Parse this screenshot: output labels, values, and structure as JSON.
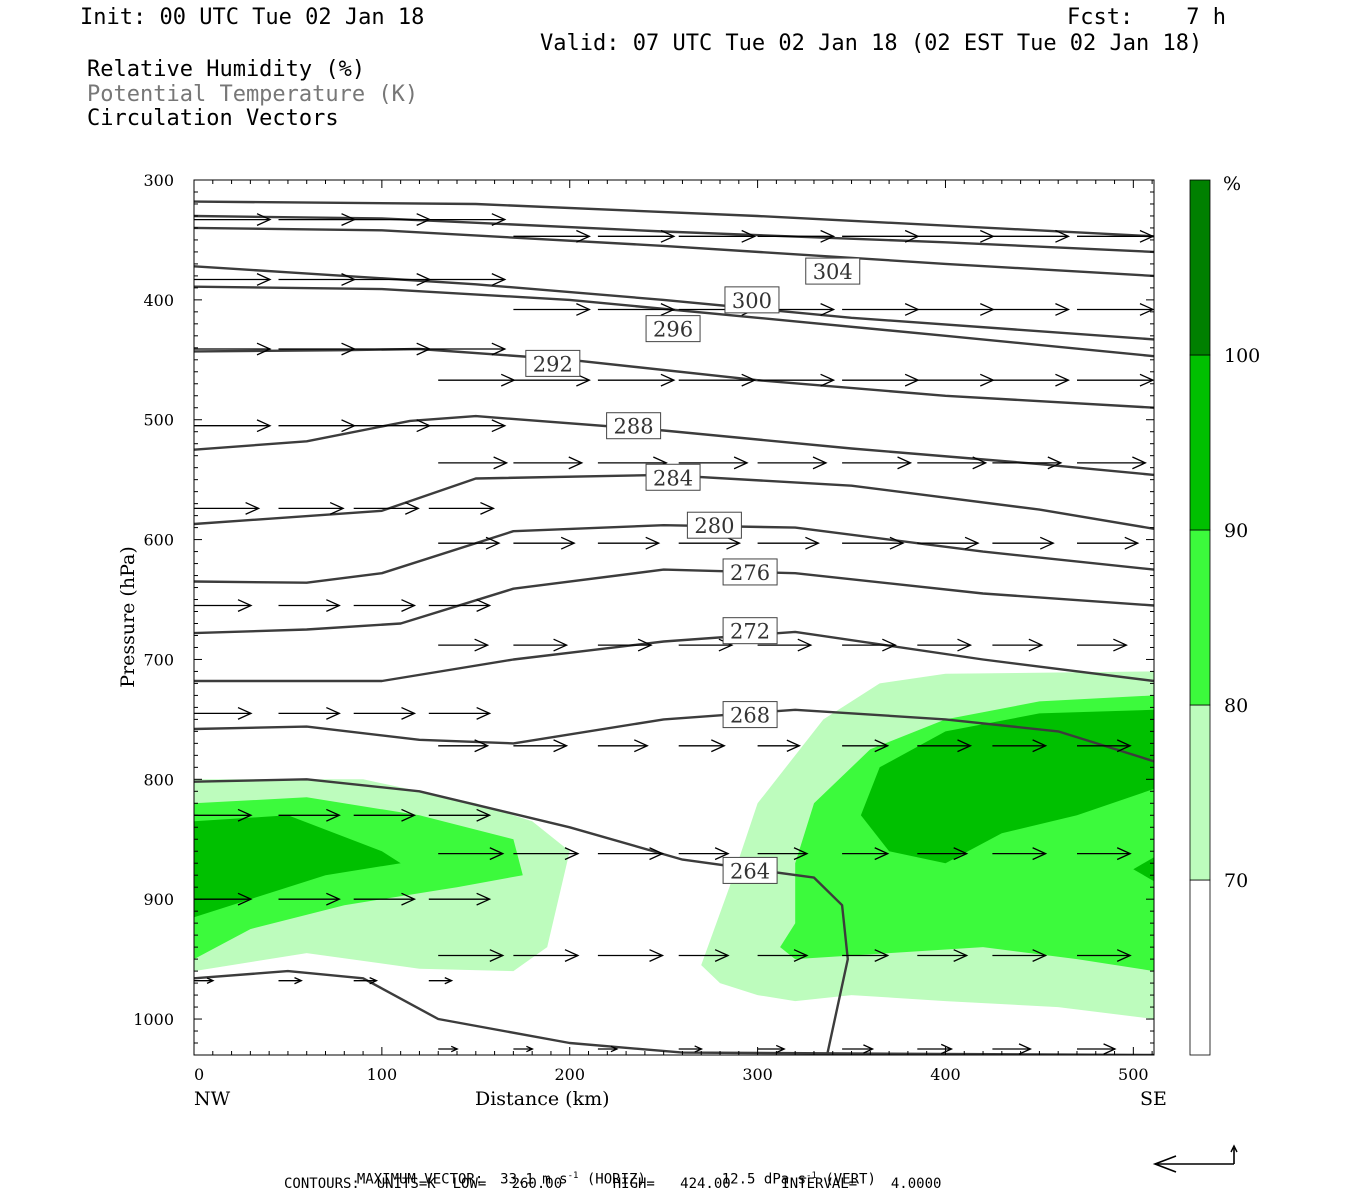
{
  "header": {
    "init": "Init: 00 UTC Tue 02 Jan 18",
    "fcst": "Fcst:    7 h",
    "valid": "Valid: 07 UTC Tue 02 Jan 18 (02 EST Tue 02 Jan 18)",
    "fields": [
      "Relative Humidity (%)",
      "Potential Temperature (K)",
      "Circulation Vectors"
    ]
  },
  "footer": {
    "max_vector_label": "MAXIMUM VECTOR:",
    "max_vector_horiz": "33.1 m s",
    "horiz_tag": "(HORIZ)",
    "max_vector_vert": "12.5 dPa s",
    "vert_tag": "(VERT)",
    "contours": "CONTOURS:  UNITS=K  LOW=   260.00      HIGH=   424.00      INTERVAL=    4.0000"
  },
  "chart_data": {
    "type": "cross-section",
    "xlabel": "Distance (km)",
    "ylabel": "Pressure (hPa)",
    "x_ticks": [
      0,
      100,
      200,
      300,
      400,
      500
    ],
    "x_end_labels": [
      "NW",
      "SE"
    ],
    "xlim": [
      0,
      511
    ],
    "ylim": [
      300,
      1030
    ],
    "y_ticks": [
      300,
      400,
      500,
      600,
      700,
      800,
      900,
      1000
    ],
    "colorbar": {
      "unit": "%",
      "levels": [
        70,
        80,
        90,
        100
      ],
      "colors": [
        "#ffffff",
        "#bdfcbd",
        "#3cfa3c",
        "#00c000",
        "#008000"
      ]
    },
    "theta_contour_labels": [
      {
        "value": "264",
        "x": 296,
        "p": 876
      },
      {
        "value": "268",
        "x": 296,
        "p": 746
      },
      {
        "value": "272",
        "x": 296,
        "p": 676
      },
      {
        "value": "276",
        "x": 296,
        "p": 627
      },
      {
        "value": "280",
        "x": 277,
        "p": 588
      },
      {
        "value": "284",
        "x": 255,
        "p": 548
      },
      {
        "value": "288",
        "x": 234,
        "p": 505
      },
      {
        "value": "292",
        "x": 191,
        "p": 453
      },
      {
        "value": "296",
        "x": 255,
        "p": 424
      },
      {
        "value": "300",
        "x": 297,
        "p": 400
      },
      {
        "value": "304",
        "x": 340,
        "p": 376
      }
    ],
    "theta_contours": [
      [
        [
          0,
          318
        ],
        [
          150,
          320
        ],
        [
          300,
          330
        ],
        [
          511,
          347
        ]
      ],
      [
        [
          0,
          330
        ],
        [
          100,
          332
        ],
        [
          250,
          343
        ],
        [
          400,
          352
        ],
        [
          511,
          360
        ]
      ],
      [
        [
          0,
          340
        ],
        [
          100,
          342
        ],
        [
          250,
          355
        ],
        [
          400,
          370
        ],
        [
          511,
          380
        ]
      ],
      [
        [
          0,
          372
        ],
        [
          50,
          377
        ],
        [
          150,
          387
        ],
        [
          250,
          400
        ],
        [
          350,
          415
        ],
        [
          511,
          433
        ]
      ],
      [
        [
          0,
          389
        ],
        [
          100,
          391
        ],
        [
          200,
          400
        ],
        [
          300,
          415
        ],
        [
          400,
          430
        ],
        [
          511,
          447
        ]
      ],
      [
        [
          0,
          443
        ],
        [
          80,
          442
        ],
        [
          120,
          441
        ],
        [
          200,
          450
        ],
        [
          300,
          467
        ],
        [
          400,
          480
        ],
        [
          511,
          490
        ]
      ],
      [
        [
          0,
          525
        ],
        [
          60,
          518
        ],
        [
          115,
          501
        ],
        [
          150,
          497
        ],
        [
          250,
          509
        ],
        [
          350,
          524
        ],
        [
          450,
          537
        ],
        [
          511,
          546
        ]
      ],
      [
        [
          0,
          587
        ],
        [
          100,
          576
        ],
        [
          150,
          549
        ],
        [
          250,
          546
        ],
        [
          350,
          555
        ],
        [
          450,
          575
        ],
        [
          511,
          591
        ]
      ],
      [
        [
          0,
          635
        ],
        [
          60,
          636
        ],
        [
          100,
          628
        ],
        [
          170,
          593
        ],
        [
          250,
          588
        ],
        [
          320,
          590
        ],
        [
          420,
          610
        ],
        [
          511,
          625
        ]
      ],
      [
        [
          0,
          678
        ],
        [
          60,
          675
        ],
        [
          110,
          670
        ],
        [
          170,
          641
        ],
        [
          250,
          625
        ],
        [
          320,
          628
        ],
        [
          420,
          645
        ],
        [
          511,
          655
        ]
      ],
      [
        [
          0,
          718
        ],
        [
          100,
          718
        ],
        [
          170,
          700
        ],
        [
          250,
          685
        ],
        [
          320,
          677
        ],
        [
          420,
          700
        ],
        [
          511,
          718
        ]
      ],
      [
        [
          0,
          758
        ],
        [
          60,
          756
        ],
        [
          120,
          767
        ],
        [
          170,
          770
        ],
        [
          250,
          750
        ],
        [
          320,
          742
        ],
        [
          400,
          750
        ],
        [
          460,
          760
        ],
        [
          511,
          785
        ]
      ],
      [
        [
          0,
          802
        ],
        [
          60,
          800
        ],
        [
          120,
          810
        ],
        [
          200,
          840
        ],
        [
          260,
          867
        ],
        [
          330,
          882
        ],
        [
          345,
          905
        ],
        [
          348,
          950
        ],
        [
          337,
          1030
        ]
      ],
      [
        [
          0,
          966
        ],
        [
          50,
          960
        ],
        [
          90,
          966
        ],
        [
          130,
          1000
        ],
        [
          200,
          1020
        ],
        [
          260,
          1028
        ],
        [
          511,
          1030
        ]
      ]
    ],
    "rh_polygons": [
      {
        "level": 70,
        "points": [
          [
            0,
            800
          ],
          [
            90,
            800
          ],
          [
            150,
            820
          ],
          [
            180,
            835
          ],
          [
            200,
            860
          ],
          [
            188,
            940
          ],
          [
            170,
            960
          ],
          [
            120,
            958
          ],
          [
            60,
            945
          ],
          [
            0,
            960
          ]
        ]
      },
      {
        "level": 70,
        "points": [
          [
            270,
            955
          ],
          [
            285,
            890
          ],
          [
            300,
            820
          ],
          [
            335,
            750
          ],
          [
            365,
            720
          ],
          [
            400,
            712
          ],
          [
            511,
            710
          ],
          [
            511,
            1000
          ],
          [
            460,
            990
          ],
          [
            400,
            985
          ],
          [
            350,
            980
          ],
          [
            320,
            985
          ],
          [
            300,
            980
          ],
          [
            280,
            970
          ]
        ]
      },
      {
        "level": 80,
        "points": [
          [
            0,
            820
          ],
          [
            60,
            815
          ],
          [
            120,
            830
          ],
          [
            170,
            850
          ],
          [
            175,
            880
          ],
          [
            140,
            890
          ],
          [
            80,
            905
          ],
          [
            30,
            925
          ],
          [
            0,
            950
          ]
        ]
      },
      {
        "level": 80,
        "points": [
          [
            320,
            870
          ],
          [
            330,
            820
          ],
          [
            360,
            775
          ],
          [
            400,
            750
          ],
          [
            450,
            735
          ],
          [
            511,
            730
          ],
          [
            511,
            960
          ],
          [
            470,
            950
          ],
          [
            420,
            940
          ],
          [
            370,
            945
          ],
          [
            320,
            950
          ],
          [
            312,
            940
          ],
          [
            320,
            920
          ]
        ]
      },
      {
        "level": 90,
        "points": [
          [
            0,
            835
          ],
          [
            50,
            830
          ],
          [
            100,
            860
          ],
          [
            110,
            870
          ],
          [
            70,
            880
          ],
          [
            30,
            900
          ],
          [
            0,
            915
          ]
        ]
      },
      {
        "level": 90,
        "points": [
          [
            355,
            830
          ],
          [
            365,
            790
          ],
          [
            400,
            760
          ],
          [
            450,
            745
          ],
          [
            511,
            742
          ],
          [
            511,
            808
          ],
          [
            470,
            830
          ],
          [
            430,
            845
          ],
          [
            400,
            870
          ],
          [
            370,
            860
          ]
        ]
      },
      {
        "level": 90,
        "points": [
          [
            500,
            875
          ],
          [
            511,
            865
          ],
          [
            511,
            885
          ]
        ]
      }
    ],
    "vectors_rows": [
      {
        "p": 333,
        "x": [
          0,
          45,
          85,
          125
        ],
        "u": [
          40,
          40,
          40,
          40
        ],
        "w": [
          0,
          0,
          0,
          0
        ]
      },
      {
        "p": 347,
        "x": [
          170,
          215,
          258,
          300,
          345,
          385,
          425,
          470
        ],
        "u": [
          40,
          40,
          40,
          40,
          40,
          40,
          40,
          40
        ],
        "w": [
          0,
          0,
          0,
          0,
          0,
          0,
          0,
          0
        ]
      },
      {
        "p": 383,
        "x": [
          0,
          45,
          85,
          125
        ],
        "u": [
          40,
          40,
          40,
          40
        ],
        "w": [
          0,
          0,
          0,
          0
        ]
      },
      {
        "p": 408,
        "x": [
          170,
          215,
          258,
          300,
          345,
          385,
          425,
          470
        ],
        "u": [
          40,
          40,
          40,
          40,
          40,
          40,
          40,
          40
        ],
        "w": [
          0,
          0,
          0,
          0,
          0,
          0,
          0,
          0
        ]
      },
      {
        "p": 441,
        "x": [
          0,
          45,
          85,
          125
        ],
        "u": [
          40,
          40,
          40,
          40
        ],
        "w": [
          0,
          0,
          0,
          0
        ]
      },
      {
        "p": 467,
        "x": [
          130,
          170,
          215,
          258,
          300,
          345,
          385,
          425,
          470
        ],
        "u": [
          40,
          40,
          40,
          40,
          40,
          40,
          40,
          40,
          40
        ],
        "w": [
          0,
          0,
          0,
          0,
          0,
          0,
          0,
          0,
          0
        ]
      },
      {
        "p": 505,
        "x": [
          0,
          45,
          85,
          125
        ],
        "u": [
          40,
          40,
          40,
          40
        ],
        "w": [
          0,
          0,
          0,
          0
        ]
      },
      {
        "p": 536,
        "x": [
          130,
          170,
          215,
          258,
          300,
          345,
          385,
          425,
          470
        ],
        "u": [
          36,
          36,
          36,
          36,
          36,
          36,
          36,
          36,
          36
        ],
        "w": [
          0,
          0,
          0,
          0,
          0,
          0,
          0,
          0,
          0
        ]
      },
      {
        "p": 574,
        "x": [
          0,
          45,
          85,
          125
        ],
        "u": [
          34,
          34,
          34,
          34
        ],
        "w": [
          0,
          0,
          0,
          0
        ]
      },
      {
        "p": 603,
        "x": [
          130,
          170,
          215,
          258,
          300,
          345,
          385,
          425,
          470
        ],
        "u": [
          32,
          32,
          32,
          32,
          32,
          32,
          32,
          32,
          32
        ],
        "w": [
          0,
          0,
          0,
          0,
          0,
          0,
          0,
          0,
          0
        ]
      },
      {
        "p": 655,
        "x": [
          0,
          45,
          85,
          125
        ],
        "u": [
          30,
          32,
          32,
          32
        ],
        "w": [
          0,
          0,
          0,
          0
        ]
      },
      {
        "p": 688,
        "x": [
          130,
          170,
          215,
          258,
          300,
          345,
          385,
          425,
          470
        ],
        "u": [
          26,
          28,
          28,
          28,
          28,
          28,
          28,
          26,
          26
        ],
        "w": [
          0,
          0,
          0,
          0,
          0,
          0,
          0,
          0,
          0
        ]
      },
      {
        "p": 745,
        "x": [
          0,
          45,
          85,
          125
        ],
        "u": [
          30,
          32,
          32,
          32
        ],
        "w": [
          0,
          0,
          0,
          0
        ]
      },
      {
        "p": 772,
        "x": [
          130,
          170,
          215,
          258,
          300,
          345,
          385,
          425,
          470
        ],
        "u": [
          26,
          28,
          26,
          24,
          22,
          24,
          28,
          28,
          28
        ],
        "w": [
          0,
          0,
          0,
          0,
          0,
          0,
          0,
          0,
          0
        ]
      },
      {
        "p": 830,
        "x": [
          0,
          45,
          85,
          125
        ],
        "u": [
          30,
          32,
          32,
          32
        ],
        "w": [
          0,
          0,
          0,
          0
        ]
      },
      {
        "p": 862,
        "x": [
          130,
          170,
          215,
          258,
          300,
          345,
          385,
          425,
          470
        ],
        "u": [
          34,
          34,
          34,
          26,
          26,
          24,
          26,
          28,
          28
        ],
        "w": [
          0,
          0,
          0,
          0,
          0,
          0,
          0,
          0,
          0
        ]
      },
      {
        "p": 900,
        "x": [
          0,
          45,
          85,
          125
        ],
        "u": [
          30,
          32,
          32,
          32
        ],
        "w": [
          0,
          0,
          0,
          0
        ]
      },
      {
        "p": 947,
        "x": [
          130,
          170,
          215,
          258,
          300,
          345,
          385,
          425,
          470
        ],
        "u": [
          34,
          34,
          34,
          26,
          26,
          24,
          26,
          28,
          28
        ],
        "w": [
          0,
          0,
          0,
          0,
          0,
          0,
          0,
          0,
          0
        ]
      },
      {
        "p": 968,
        "x": [
          0,
          45,
          85,
          125
        ],
        "u": [
          10,
          12,
          12,
          12
        ],
        "w": [
          0,
          0,
          0,
          0
        ]
      },
      {
        "p": 1025,
        "x": [
          130,
          170,
          215,
          258,
          300,
          345,
          385,
          425,
          470
        ],
        "u": [
          10,
          10,
          10,
          12,
          14,
          16,
          18,
          20,
          20
        ],
        "w": [
          0,
          0,
          0,
          0,
          0,
          0,
          0,
          0,
          0
        ]
      }
    ]
  }
}
